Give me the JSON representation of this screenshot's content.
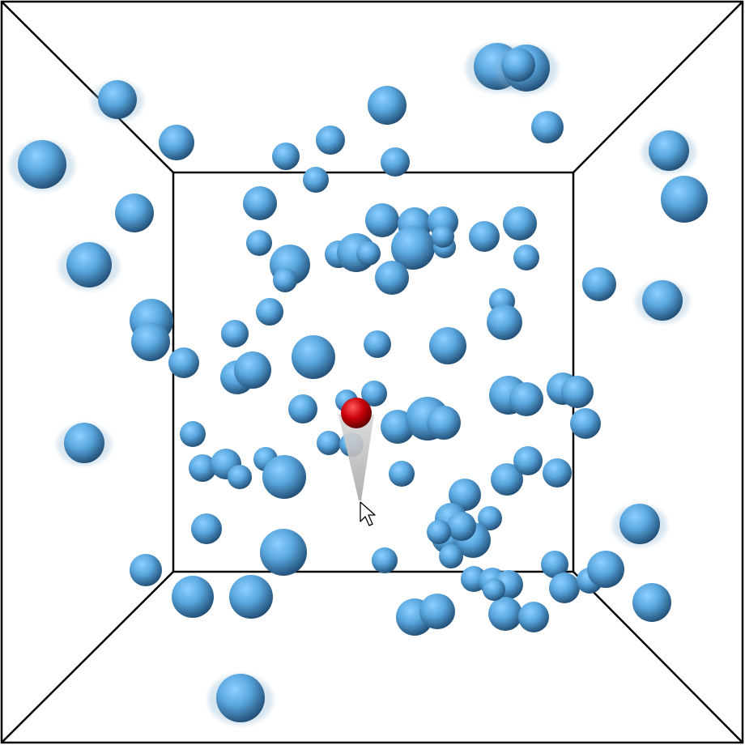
{
  "scene": {
    "type": "3d-point-selection-task",
    "background_color": "#ffffff",
    "frame_color": "#000000",
    "sphere_color": "#5aa8e0",
    "target_color": "#c8000a",
    "pointer_cone_color": "#b4b4b4",
    "cursor_icon": "arrow-cursor-icon",
    "sphere_count": 104,
    "target_count": 1
  }
}
